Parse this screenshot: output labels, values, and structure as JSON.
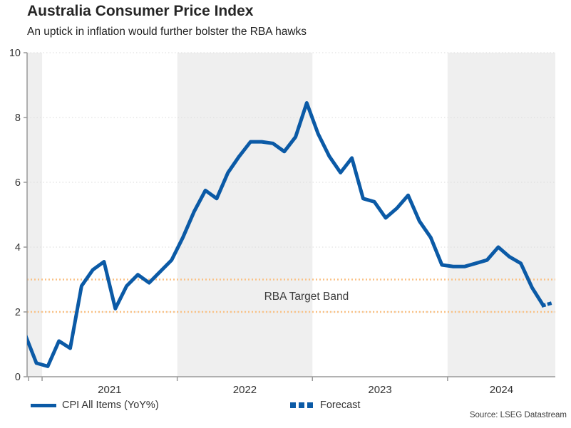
{
  "header": {
    "title": "Australia Consumer Price Index",
    "subtitle": "An uptick in inflation would further bolster the RBA hawks"
  },
  "source": "Source: LSEG Datastream",
  "legend": [
    {
      "label": "CPI All Items (YoY%)",
      "style": "solid"
    },
    {
      "label": "Forecast",
      "style": "dotted"
    }
  ],
  "colors": {
    "line": "#0B5AA6",
    "target_band": "#FAC286",
    "year_band": "#EFEFEF",
    "gridline": "#DBDBDB",
    "axis": "#999999",
    "tick_text": "#333333",
    "annotation_text": "#3d3d3d"
  },
  "chart_data": {
    "type": "line",
    "title": "Australia Consumer Price Index",
    "xlabel": "",
    "ylabel": "CPI All Items (YoY%)",
    "x_axis": {
      "min": 2020.889,
      "max": 2024.797,
      "tick_years": [
        2020.9,
        2021,
        2022,
        2023,
        2024
      ],
      "year_labels": [
        "2021",
        "2022",
        "2023",
        "2024"
      ]
    },
    "y_axis": {
      "min": 0,
      "max": 10,
      "ticks": [
        0,
        2,
        4,
        6,
        8,
        10
      ],
      "gridlines": [
        2,
        4,
        6,
        8,
        10
      ]
    },
    "shaded_year_bands": [
      [
        2020.889,
        2021
      ],
      [
        2022,
        2023
      ],
      [
        2024,
        2024.797
      ]
    ],
    "target_band": {
      "low": 2,
      "high": 3,
      "label": "RBA Target Band",
      "label_x": 2022.956,
      "label_y": 2.5
    },
    "series": [
      {
        "name": "CPI All Items (YoY%)",
        "style": "solid",
        "points": [
          [
            2020.875,
            1.3
          ],
          [
            2020.958,
            0.42
          ],
          [
            2021.042,
            0.32
          ],
          [
            2021.125,
            1.1
          ],
          [
            2021.208,
            0.88
          ],
          [
            2021.292,
            2.8
          ],
          [
            2021.375,
            3.3
          ],
          [
            2021.458,
            3.55
          ],
          [
            2021.542,
            2.1
          ],
          [
            2021.625,
            2.8
          ],
          [
            2021.708,
            3.15
          ],
          [
            2021.792,
            2.9
          ],
          [
            2021.875,
            3.25
          ],
          [
            2021.958,
            3.6
          ],
          [
            2022.042,
            4.3
          ],
          [
            2022.125,
            5.1
          ],
          [
            2022.208,
            5.75
          ],
          [
            2022.292,
            5.5
          ],
          [
            2022.375,
            6.3
          ],
          [
            2022.458,
            6.8
          ],
          [
            2022.542,
            7.25
          ],
          [
            2022.625,
            7.25
          ],
          [
            2022.708,
            7.2
          ],
          [
            2022.792,
            6.95
          ],
          [
            2022.875,
            7.4
          ],
          [
            2022.958,
            8.45
          ],
          [
            2023.042,
            7.5
          ],
          [
            2023.125,
            6.8
          ],
          [
            2023.208,
            6.3
          ],
          [
            2023.292,
            6.75
          ],
          [
            2023.375,
            5.5
          ],
          [
            2023.458,
            5.4
          ],
          [
            2023.542,
            4.9
          ],
          [
            2023.625,
            5.2
          ],
          [
            2023.708,
            5.6
          ],
          [
            2023.792,
            4.8
          ],
          [
            2023.875,
            4.3
          ],
          [
            2023.958,
            3.45
          ],
          [
            2024.042,
            3.4
          ],
          [
            2024.125,
            3.4
          ],
          [
            2024.208,
            3.5
          ],
          [
            2024.292,
            3.6
          ],
          [
            2024.375,
            4.0
          ],
          [
            2024.458,
            3.7
          ],
          [
            2024.542,
            3.5
          ],
          [
            2024.625,
            2.75
          ],
          [
            2024.708,
            2.2
          ]
        ]
      },
      {
        "name": "Forecast",
        "style": "dotted",
        "points": [
          [
            2024.708,
            2.2
          ],
          [
            2024.792,
            2.3
          ]
        ]
      }
    ]
  }
}
